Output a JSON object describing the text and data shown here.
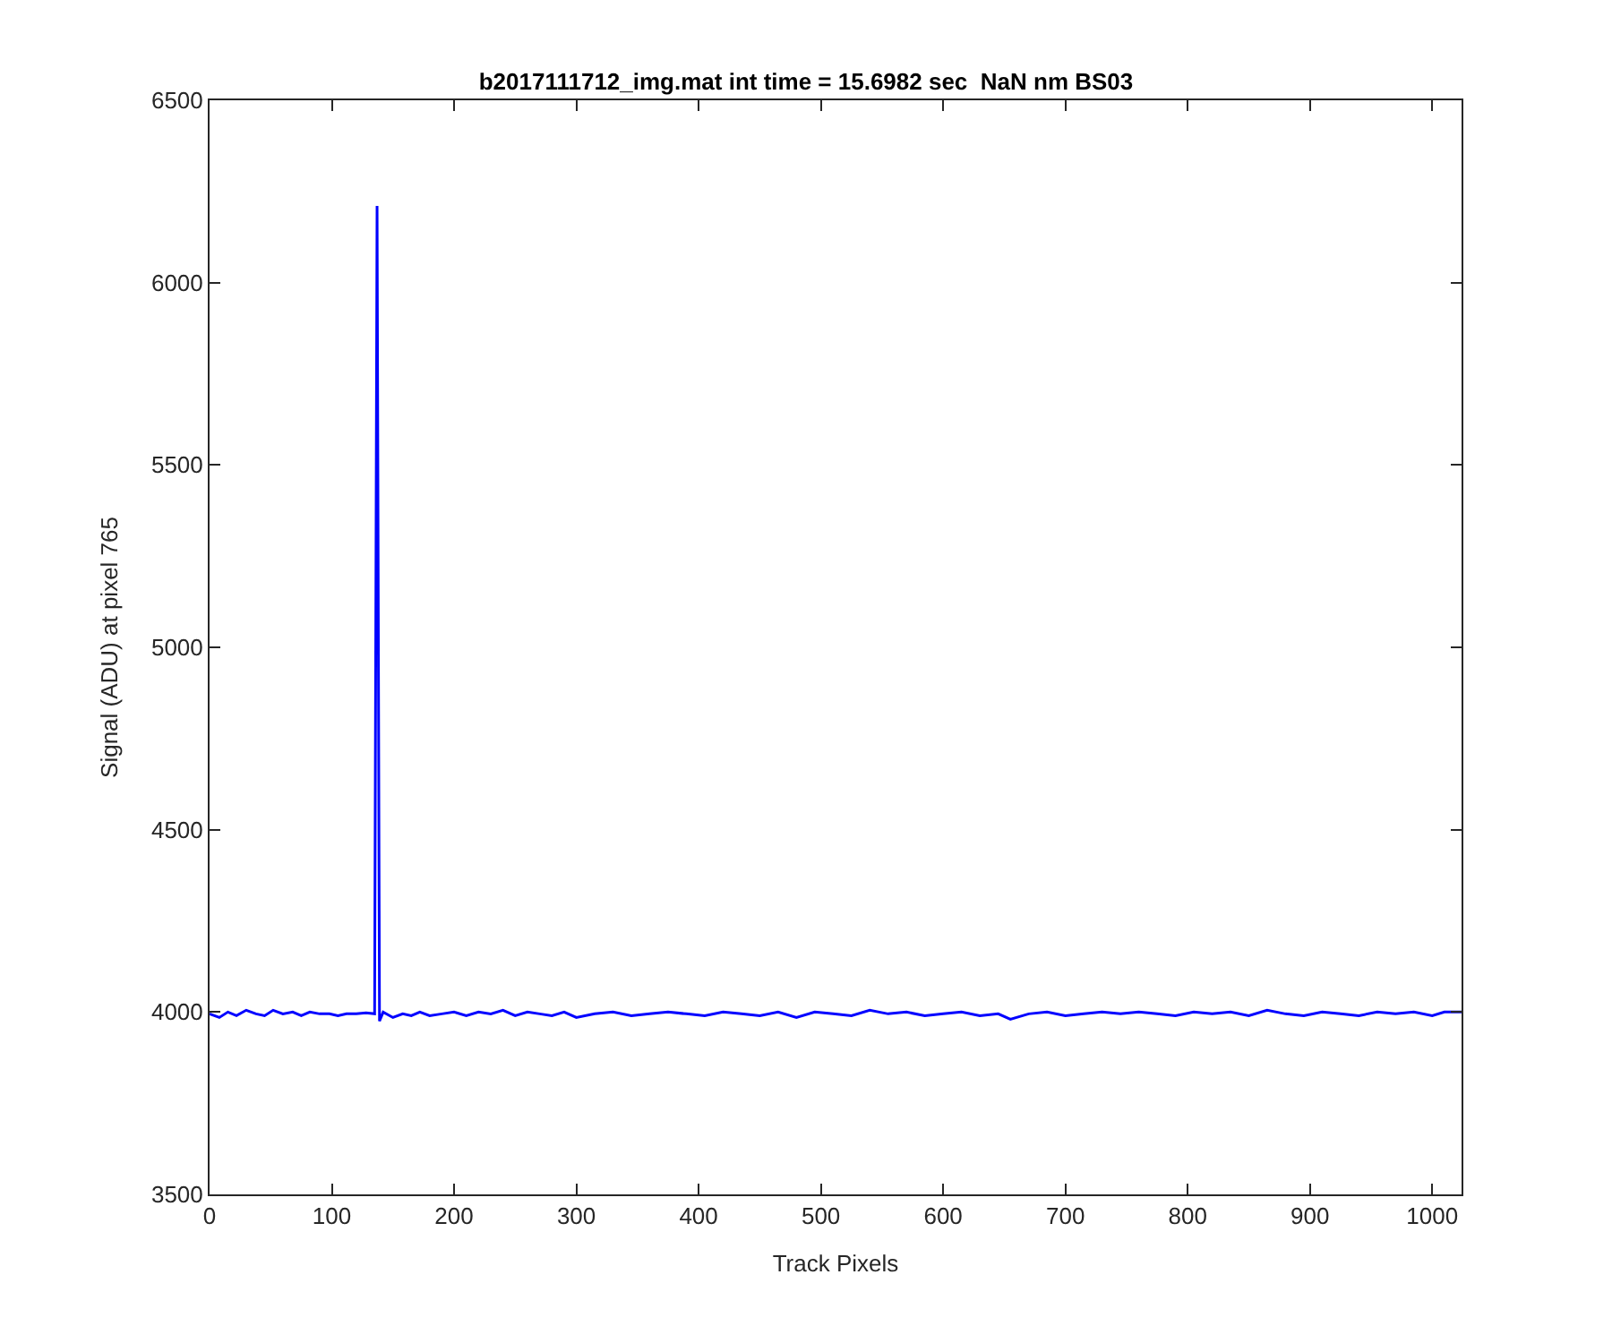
{
  "chart_data": {
    "type": "line",
    "title": "b2017111712_img.mat int time = 15.6982 sec  NaN nm BS03",
    "xlabel": "Track Pixels",
    "ylabel": "Signal (ADU) at pixel 765",
    "series": [
      {
        "color": "#0000ff",
        "x": [
          0,
          8,
          15,
          22,
          30,
          38,
          45,
          52,
          60,
          68,
          75,
          82,
          90,
          98,
          105,
          112,
          120,
          128,
          135,
          137,
          139,
          142,
          150,
          158,
          165,
          172,
          180,
          190,
          200,
          210,
          220,
          230,
          240,
          250,
          260,
          270,
          280,
          290,
          300,
          315,
          330,
          345,
          360,
          375,
          390,
          405,
          420,
          435,
          450,
          465,
          480,
          495,
          510,
          525,
          540,
          555,
          570,
          585,
          600,
          615,
          630,
          645,
          655,
          670,
          685,
          700,
          715,
          730,
          745,
          760,
          775,
          790,
          805,
          820,
          835,
          850,
          865,
          880,
          895,
          910,
          925,
          940,
          955,
          970,
          985,
          1000,
          1010,
          1024
        ],
        "values": [
          3995,
          3985,
          4000,
          3990,
          4005,
          3995,
          3990,
          4005,
          3995,
          4000,
          3990,
          4000,
          3995,
          3995,
          3990,
          3995,
          3995,
          3998,
          3995,
          6210,
          3975,
          4000,
          3985,
          3995,
          3990,
          4000,
          3990,
          3995,
          4000,
          3990,
          4000,
          3995,
          4005,
          3990,
          4000,
          3995,
          3990,
          4000,
          3985,
          3995,
          4000,
          3990,
          3995,
          4000,
          3995,
          3990,
          4000,
          3995,
          3990,
          4000,
          3985,
          4000,
          3995,
          3990,
          4005,
          3995,
          4000,
          3990,
          3995,
          4000,
          3990,
          3995,
          3980,
          3995,
          4000,
          3990,
          3995,
          4000,
          3995,
          4000,
          3995,
          3990,
          4000,
          3995,
          4000,
          3990,
          4005,
          3995,
          3990,
          4000,
          3995,
          3990,
          4000,
          3995,
          4000,
          3990,
          4000,
          4000
        ]
      }
    ],
    "xlim": [
      0,
      1024
    ],
    "xticks": [
      0,
      100,
      200,
      300,
      400,
      500,
      600,
      700,
      800,
      900,
      1000
    ],
    "ylim": [
      3500,
      6500
    ],
    "yticks": [
      3500,
      4000,
      4500,
      5000,
      5500,
      6000,
      6500
    ],
    "grid": false,
    "marker": "none",
    "line_style": "solid"
  }
}
